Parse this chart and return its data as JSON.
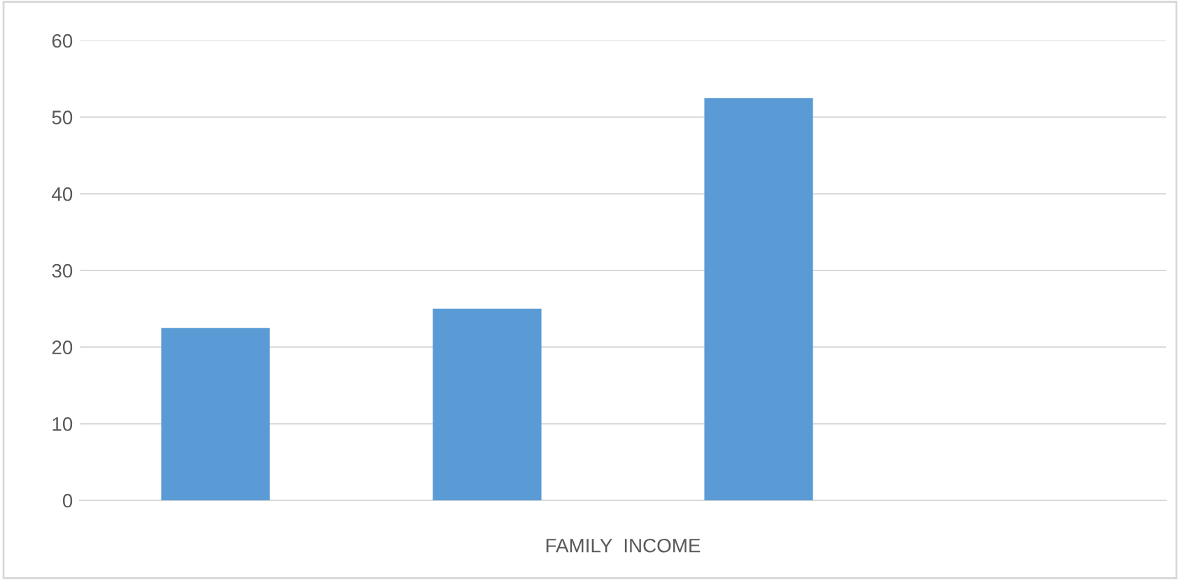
{
  "chart_data": {
    "type": "bar",
    "xlabel": "FAMILY  INCOME",
    "categories": [
      null,
      null,
      null,
      null
    ],
    "values": [
      22.5,
      25,
      52.5,
      null
    ],
    "color": "#5b9bd5",
    "ylim": [
      0,
      60
    ],
    "yticks": [
      0,
      10,
      20,
      30,
      40,
      50,
      60
    ],
    "grid": "y"
  }
}
